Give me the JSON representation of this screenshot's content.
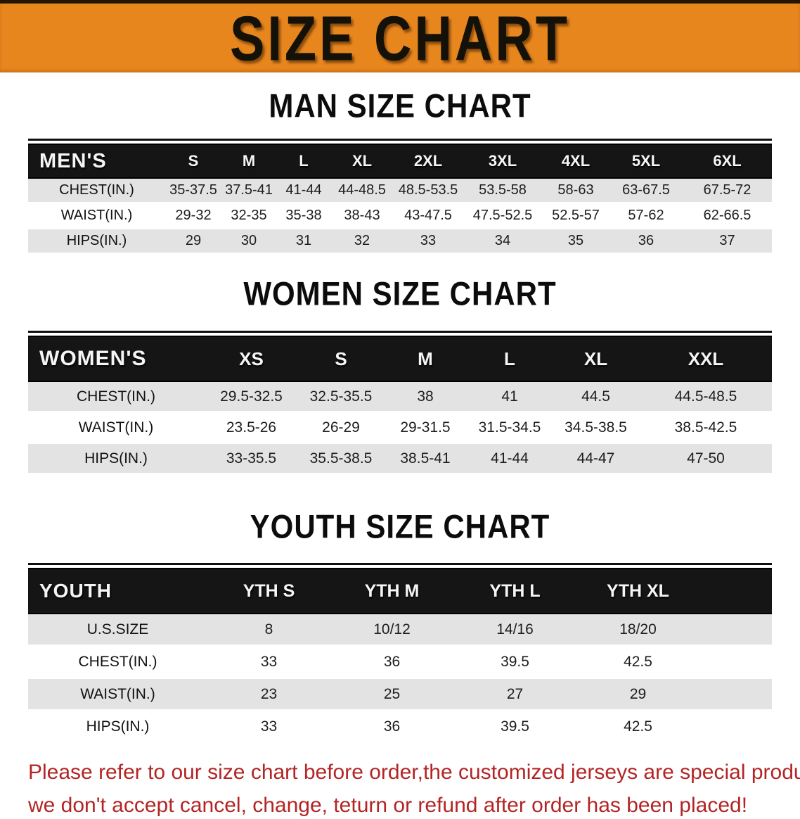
{
  "banner": {
    "title": "SIZE CHART",
    "bg_color": "#e8861e"
  },
  "sections": [
    {
      "heading": "MAN SIZE CHART",
      "table": {
        "corner_label": "MEN'S",
        "columns": [
          "S",
          "M",
          "L",
          "XL",
          "2XL",
          "3XL",
          "4XL",
          "5XL",
          "6XL"
        ],
        "rows": [
          {
            "label": "CHEST(IN.)",
            "values": [
              "35-37.5",
              "37.5-41",
              "41-44",
              "44-48.5",
              "48.5-53.5",
              "53.5-58",
              "58-63",
              "63-67.5",
              "67.5-72"
            ]
          },
          {
            "label": "WAIST(IN.)",
            "values": [
              "29-32",
              "32-35",
              "35-38",
              "38-43",
              "43-47.5",
              "47.5-52.5",
              "52.5-57",
              "57-62",
              "62-66.5"
            ]
          },
          {
            "label": "HIPS(IN.)",
            "values": [
              "29",
              "30",
              "31",
              "32",
              "33",
              "34",
              "35",
              "36",
              "37"
            ]
          }
        ]
      }
    },
    {
      "heading": "WOMEN SIZE CHART",
      "table": {
        "corner_label": "WOMEN'S",
        "columns": [
          "XS",
          "S",
          "M",
          "L",
          "XL",
          "XXL"
        ],
        "rows": [
          {
            "label": "CHEST(IN.)",
            "values": [
              "29.5-32.5",
              "32.5-35.5",
              "38",
              "41",
              "44.5",
              "44.5-48.5"
            ]
          },
          {
            "label": "WAIST(IN.)",
            "values": [
              "23.5-26",
              "26-29",
              "29-31.5",
              "31.5-34.5",
              "34.5-38.5",
              "38.5-42.5"
            ]
          },
          {
            "label": "HIPS(IN.)",
            "values": [
              "33-35.5",
              "35.5-38.5",
              "38.5-41",
              "41-44",
              "44-47",
              "47-50"
            ]
          }
        ]
      }
    },
    {
      "heading": "YOUTH SIZE CHART",
      "table": {
        "corner_label": "YOUTH",
        "columns": [
          "YTH S",
          "YTH M",
          "YTH L",
          "YTH XL"
        ],
        "rows": [
          {
            "label": "U.S.SIZE",
            "values": [
              "8",
              "10/12",
              "14/16",
              "18/20"
            ]
          },
          {
            "label": "CHEST(IN.)",
            "values": [
              "33",
              "36",
              "39.5",
              "42.5"
            ]
          },
          {
            "label": "WAIST(IN.)",
            "values": [
              "23",
              "25",
              "27",
              "29"
            ]
          },
          {
            "label": "HIPS(IN.)",
            "values": [
              "33",
              "36",
              "39.5",
              "42.5"
            ]
          }
        ]
      }
    }
  ],
  "footer": {
    "lines": [
      "Please refer to our size chart before order,the customized jerseys are special products,",
      "we don't accept cancel, change, teturn or refund after order has been placed!"
    ],
    "text_color": "#b32525"
  }
}
